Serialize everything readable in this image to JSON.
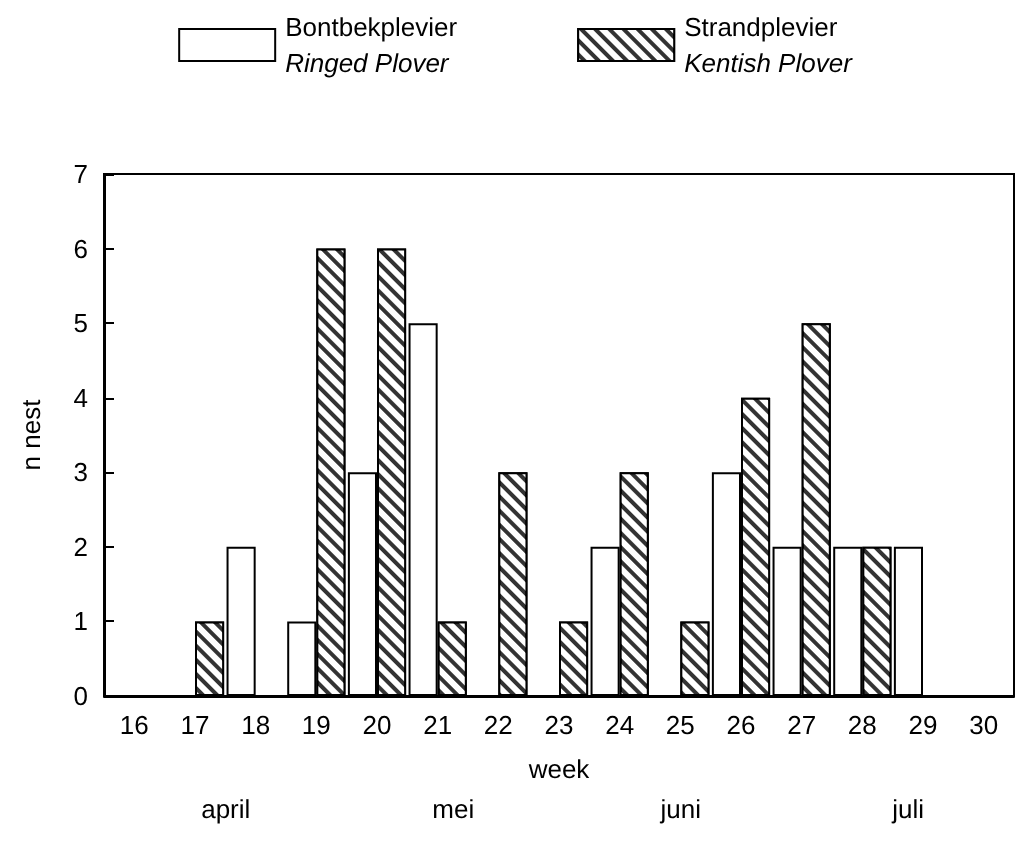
{
  "chart_data": {
    "type": "bar",
    "xlabel": "week",
    "ylabel": "n nest",
    "categories": [
      "16",
      "17",
      "18",
      "19",
      "20",
      "21",
      "22",
      "23",
      "24",
      "25",
      "26",
      "27",
      "28",
      "29",
      "30"
    ],
    "series": [
      {
        "name": "Bontbekplevier\nRinged Plover",
        "color": "#ffffff",
        "values": [
          0,
          0,
          2,
          1,
          3,
          5,
          0,
          0,
          2,
          0,
          3,
          2,
          2,
          2,
          0
        ]
      },
      {
        "name": "Strandplevier\nKentish Plover",
        "color": "#333333",
        "values": [
          0,
          1,
          0,
          6,
          6,
          1,
          3,
          1,
          3,
          1,
          4,
          5,
          2,
          0,
          0
        ]
      }
    ],
    "ylim": [
      0,
      7
    ],
    "yticks": [
      0,
      1,
      2,
      3,
      4,
      5,
      6,
      7
    ],
    "grid": false,
    "legend": "top",
    "annotations": [
      "april",
      "mei",
      "juni",
      "juli"
    ]
  }
}
